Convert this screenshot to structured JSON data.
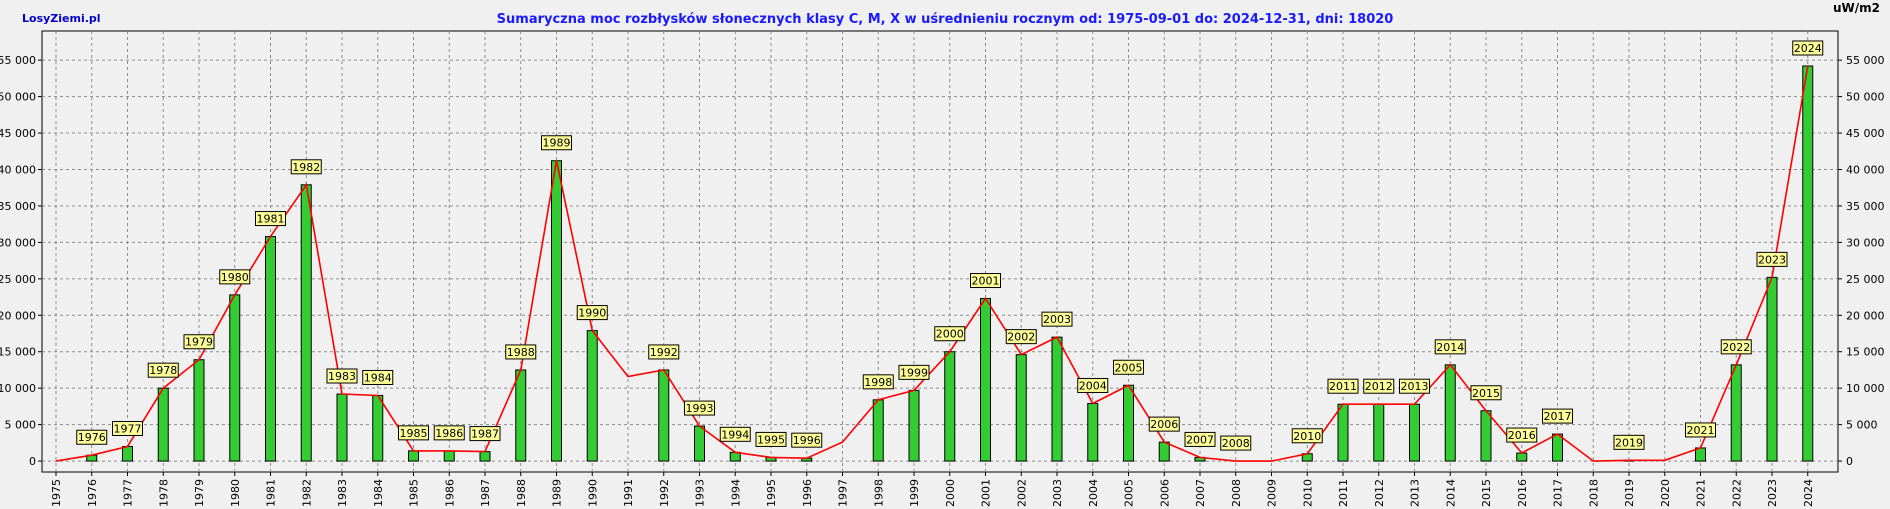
{
  "header": {
    "site": "LosyZiemi.pl",
    "title": "Sumaryczna moc rozbłysków słonecznych klasy C, M, X w uśrednieniu rocznym od: 1975-09-01 do: 2024-12-31, dni: 18020",
    "unit": "uW/m2"
  },
  "colors": {
    "bar_fill": "#33cc33",
    "bar_stroke": "#000000",
    "line": "#ff0000",
    "label_fill": "#ffff99",
    "grid": "#8c8c8c",
    "background": "#f0f0f0"
  },
  "chart_data": {
    "type": "bar",
    "title": "Sumaryczna moc rozbłysków słonecznych klasy C, M, X w uśrednieniu rocznym od: 1975-09-01 do: 2024-12-31, dni: 18020",
    "ylabel": "uW/m2",
    "ylim": [
      -1500,
      59000
    ],
    "yticks": [
      0,
      5000,
      10000,
      15000,
      20000,
      25000,
      30000,
      35000,
      40000,
      45000,
      50000,
      55000
    ],
    "ytick_labels": [
      "0",
      "5 000",
      "10 000",
      "15 000",
      "20 000",
      "25 000",
      "30 000",
      "35 000",
      "40 000",
      "45 000",
      "50 000",
      "55 000"
    ],
    "grid": true,
    "categories": [
      "1975",
      "1976",
      "1977",
      "1978",
      "1979",
      "1980",
      "1981",
      "1982",
      "1983",
      "1984",
      "1985",
      "1986",
      "1987",
      "1988",
      "1989",
      "1990",
      "1991",
      "1992",
      "1993",
      "1994",
      "1995",
      "1996",
      "1997",
      "1998",
      "1999",
      "2000",
      "2001",
      "2002",
      "2003",
      "2004",
      "2005",
      "2006",
      "2007",
      "2008",
      "2009",
      "2010",
      "2011",
      "2012",
      "2013",
      "2014",
      "2015",
      "2016",
      "2017",
      "2018",
      "2019",
      "2020",
      "2021",
      "2022",
      "2023",
      "2024"
    ],
    "series": [
      {
        "type": "bar",
        "values": [
          0,
          800,
          2000,
          10000,
          13900,
          22800,
          30800,
          37900,
          9200,
          9000,
          1400,
          1400,
          1300,
          12500,
          41200,
          17900,
          0,
          12500,
          4800,
          1200,
          500,
          400,
          0,
          8400,
          9700,
          15000,
          22300,
          14600,
          17000,
          7900,
          10400,
          2600,
          500,
          0,
          0,
          1000,
          7800,
          7800,
          7800,
          13200,
          6900,
          1100,
          3700,
          0,
          100,
          0,
          1800,
          13200,
          25200,
          54200
        ]
      },
      {
        "type": "line",
        "values": [
          0,
          800,
          2000,
          10000,
          13900,
          22800,
          30800,
          37900,
          9200,
          9000,
          1400,
          1400,
          1300,
          12500,
          41200,
          17900,
          11600,
          12500,
          4800,
          1200,
          500,
          400,
          2600,
          8400,
          9700,
          15000,
          22300,
          14600,
          17000,
          7900,
          10400,
          2600,
          500,
          0,
          0,
          1000,
          7800,
          7800,
          7800,
          13200,
          6900,
          1100,
          3700,
          0,
          100,
          100,
          1800,
          13200,
          25200,
          54200
        ]
      }
    ],
    "bar_labeled_years": [
      "1976",
      "1977",
      "1978",
      "1979",
      "1980",
      "1981",
      "1982",
      "1983",
      "1984",
      "1985",
      "1986",
      "1987",
      "1988",
      "1989",
      "1990",
      "1992",
      "1993",
      "1994",
      "1995",
      "1996",
      "1998",
      "1999",
      "2000",
      "2001",
      "2002",
      "2003",
      "2004",
      "2005",
      "2006",
      "2007",
      "2008",
      "2010",
      "2011",
      "2012",
      "2013",
      "2014",
      "2015",
      "2016",
      "2017",
      "2019",
      "2021",
      "2022",
      "2023",
      "2024"
    ]
  }
}
